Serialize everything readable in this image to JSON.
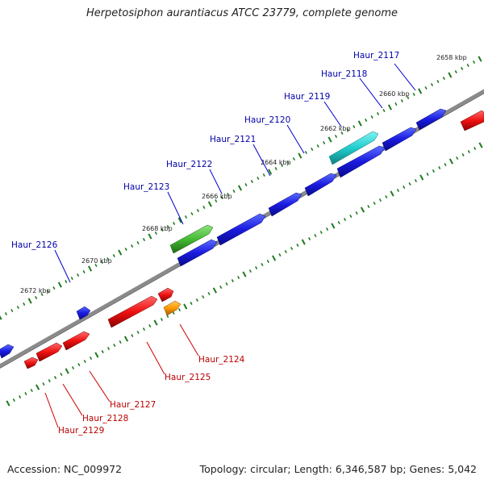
{
  "title": "Herpetosiphon aurantiacus ATCC 23779, complete genome",
  "footer": {
    "accession": "Accession: NC_009972",
    "summary": "Topology: circular; Length: 6,346,587 bp; Genes: 5,042"
  },
  "colors": {
    "plus_strand": "#0033cc",
    "minus_strand": "#cc0000",
    "tick": "#1e7a1e",
    "backbone": "#888888",
    "highlight_cyan": "#22cccc",
    "highlight_green": "#44bb33",
    "highlight_orange": "#ff9900"
  },
  "scale_labels": [
    "2658 kbp",
    "2660 kbp",
    "2662 kbp",
    "2664 kbp",
    "2666 kbp",
    "2668 kbp",
    "2670 kbp",
    "2672 kbp"
  ],
  "gene_labels_top": [
    "Haur_2117",
    "Haur_2118",
    "Haur_2119",
    "Haur_2120",
    "Haur_2121",
    "Haur_2122",
    "Haur_2123",
    "Haur_2126"
  ],
  "gene_labels_bottom": [
    "Haur_2124",
    "Haur_2125",
    "Haur_2127",
    "Haur_2128",
    "Haur_2129"
  ]
}
